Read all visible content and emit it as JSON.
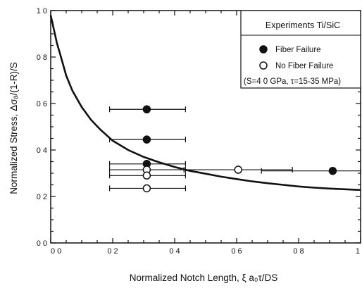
{
  "chart_data": {
    "type": "scatter",
    "title": "",
    "xlabel": "Normalized Notch Length, ξ a₀τ/DS",
    "ylabel": "Normalized Stress, Δσₐ/(1-R)/S",
    "xlim": [
      0,
      1
    ],
    "ylim": [
      0,
      1
    ],
    "x_ticks": [
      {
        "value": 0,
        "label": "0 0"
      },
      {
        "value": 0.2,
        "label": "0 2"
      },
      {
        "value": 0.4,
        "label": "0 4"
      },
      {
        "value": 0.6,
        "label": "0 6"
      },
      {
        "value": 0.8,
        "label": "0 8"
      },
      {
        "value": 1,
        "label": "1"
      }
    ],
    "y_ticks": [
      {
        "value": 0,
        "label": "0 0"
      },
      {
        "value": 0.2,
        "label": "0 2"
      },
      {
        "value": 0.4,
        "label": "0 4"
      },
      {
        "value": 0.6,
        "label": "0 6"
      },
      {
        "value": 0.8,
        "label": "0 8"
      },
      {
        "value": 1,
        "label": "1 0"
      }
    ],
    "grid": false,
    "legend": {
      "placement": "top-right",
      "title": "Experiments  Ti/SiC",
      "entries": [
        {
          "label": "Fiber Failure",
          "marker": "filled-circle"
        },
        {
          "label": "No Fiber Failure",
          "marker": "open-circle"
        }
      ],
      "note": "(S=4 0 GPa, τ=15-35 MPa)"
    },
    "series": [
      {
        "name": "Fiber Failure",
        "marker": "filled-circle",
        "points": [
          {
            "x": 0.31,
            "y": 0.575,
            "xerr": [
              0.19,
              0.435
            ]
          },
          {
            "x": 0.31,
            "y": 0.445,
            "xerr": [
              0.19,
              0.435
            ]
          },
          {
            "x": 0.31,
            "y": 0.34,
            "xerr": [
              0.19,
              0.435
            ]
          },
          {
            "x": 0.91,
            "y": 0.31,
            "xerr": [
              0.68,
              1.0
            ]
          }
        ]
      },
      {
        "name": "No Fiber Failure",
        "marker": "open-circle",
        "points": [
          {
            "x": 0.31,
            "y": 0.315,
            "xerr": [
              0.19,
              0.435
            ]
          },
          {
            "x": 0.31,
            "y": 0.29,
            "xerr": [
              0.19,
              0.435
            ]
          },
          {
            "x": 0.31,
            "y": 0.235,
            "xerr": [
              0.19,
              0.435
            ]
          },
          {
            "x": 0.605,
            "y": 0.315,
            "xerr": [
              0.43,
              0.78
            ]
          }
        ]
      }
    ],
    "curve": {
      "style": "solid",
      "points": [
        [
          0.0,
          0.98
        ],
        [
          0.01,
          0.92
        ],
        [
          0.02,
          0.86
        ],
        [
          0.03,
          0.815
        ],
        [
          0.05,
          0.72
        ],
        [
          0.07,
          0.655
        ],
        [
          0.1,
          0.585
        ],
        [
          0.13,
          0.53
        ],
        [
          0.16,
          0.488
        ],
        [
          0.2,
          0.44
        ],
        [
          0.25,
          0.4
        ],
        [
          0.3,
          0.37
        ],
        [
          0.35,
          0.347
        ],
        [
          0.4,
          0.327
        ],
        [
          0.45,
          0.31
        ],
        [
          0.5,
          0.298
        ],
        [
          0.55,
          0.285
        ],
        [
          0.6,
          0.275
        ],
        [
          0.65,
          0.265
        ],
        [
          0.7,
          0.257
        ],
        [
          0.75,
          0.25
        ],
        [
          0.8,
          0.243
        ],
        [
          0.85,
          0.238
        ],
        [
          0.9,
          0.234
        ],
        [
          0.95,
          0.231
        ],
        [
          1.0,
          0.228
        ]
      ]
    }
  }
}
